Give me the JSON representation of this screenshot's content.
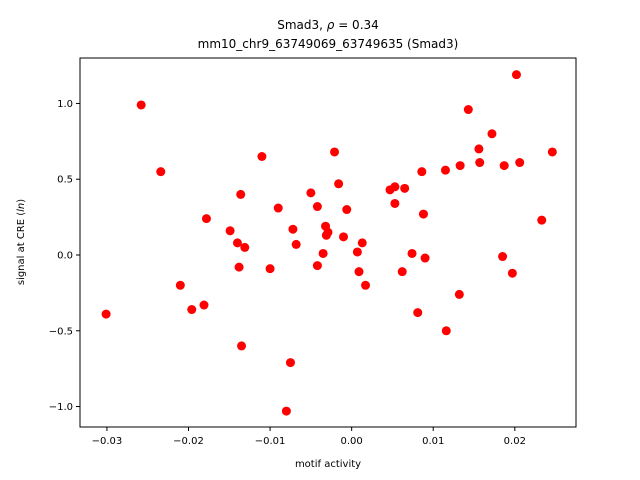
{
  "chart_data": {
    "type": "scatter",
    "title_line1_prefix": "Smad3, ",
    "title_rho_symbol": "ρ",
    "title_rho_value": " = 0.34",
    "title_line2": "mm10_chr9_63749069_63749635 (Smad3)",
    "xlabel": "motif activity",
    "ylabel_prefix": "signal at CRE (",
    "ylabel_italic": "ln",
    "ylabel_suffix": ")",
    "xlim": [
      -0.0333,
      0.0275
    ],
    "ylim": [
      -1.135,
      1.3
    ],
    "xticks": [
      -0.03,
      -0.02,
      -0.01,
      0.0,
      0.01,
      0.02
    ],
    "xtick_labels": [
      "−0.03",
      "−0.02",
      "−0.01",
      "0.00",
      "0.01",
      "0.02"
    ],
    "yticks": [
      -1.0,
      -0.5,
      0.0,
      0.5,
      1.0
    ],
    "ytick_labels": [
      "−1.0",
      "−0.5",
      "0.0",
      "0.5",
      "1.0"
    ],
    "grid": false,
    "marker_color": "#ff0000",
    "points": [
      {
        "x": -0.0301,
        "y": -0.39
      },
      {
        "x": -0.0258,
        "y": 0.99
      },
      {
        "x": -0.0234,
        "y": 0.55
      },
      {
        "x": -0.021,
        "y": -0.2
      },
      {
        "x": -0.0196,
        "y": -0.36
      },
      {
        "x": -0.0181,
        "y": -0.33
      },
      {
        "x": -0.0178,
        "y": 0.24
      },
      {
        "x": -0.0149,
        "y": 0.16
      },
      {
        "x": -0.014,
        "y": 0.08
      },
      {
        "x": -0.0138,
        "y": -0.08
      },
      {
        "x": -0.0136,
        "y": 0.4
      },
      {
        "x": -0.0135,
        "y": -0.6
      },
      {
        "x": -0.0131,
        "y": 0.05
      },
      {
        "x": -0.011,
        "y": 0.65
      },
      {
        "x": -0.01,
        "y": -0.09
      },
      {
        "x": -0.009,
        "y": 0.31
      },
      {
        "x": -0.008,
        "y": -1.03
      },
      {
        "x": -0.0075,
        "y": -0.71
      },
      {
        "x": -0.0072,
        "y": 0.17
      },
      {
        "x": -0.0068,
        "y": 0.07
      },
      {
        "x": -0.005,
        "y": 0.41
      },
      {
        "x": -0.0042,
        "y": 0.32
      },
      {
        "x": -0.0042,
        "y": -0.07
      },
      {
        "x": -0.0035,
        "y": 0.01
      },
      {
        "x": -0.0032,
        "y": 0.19
      },
      {
        "x": -0.0031,
        "y": 0.13
      },
      {
        "x": -0.0029,
        "y": 0.15
      },
      {
        "x": -0.0021,
        "y": 0.68
      },
      {
        "x": -0.0016,
        "y": 0.47
      },
      {
        "x": -0.001,
        "y": 0.12
      },
      {
        "x": -0.0006,
        "y": 0.3
      },
      {
        "x": 0.0007,
        "y": 0.02
      },
      {
        "x": 0.0009,
        "y": -0.11
      },
      {
        "x": 0.0013,
        "y": 0.08
      },
      {
        "x": 0.0017,
        "y": -0.2
      },
      {
        "x": 0.0047,
        "y": 0.43
      },
      {
        "x": 0.0053,
        "y": 0.45
      },
      {
        "x": 0.0053,
        "y": 0.34
      },
      {
        "x": 0.0062,
        "y": -0.11
      },
      {
        "x": 0.0065,
        "y": 0.44
      },
      {
        "x": 0.0074,
        "y": 0.01
      },
      {
        "x": 0.0081,
        "y": -0.38
      },
      {
        "x": 0.0086,
        "y": 0.55
      },
      {
        "x": 0.0088,
        "y": 0.27
      },
      {
        "x": 0.009,
        "y": -0.02
      },
      {
        "x": 0.0115,
        "y": 0.56
      },
      {
        "x": 0.0116,
        "y": -0.5
      },
      {
        "x": 0.0132,
        "y": -0.26
      },
      {
        "x": 0.0133,
        "y": 0.59
      },
      {
        "x": 0.0143,
        "y": 0.96
      },
      {
        "x": 0.0156,
        "y": 0.7
      },
      {
        "x": 0.0157,
        "y": 0.61
      },
      {
        "x": 0.0172,
        "y": 0.8
      },
      {
        "x": 0.0185,
        "y": -0.01
      },
      {
        "x": 0.0187,
        "y": 0.59
      },
      {
        "x": 0.0197,
        "y": -0.12
      },
      {
        "x": 0.0202,
        "y": 1.19
      },
      {
        "x": 0.0206,
        "y": 0.61
      },
      {
        "x": 0.0233,
        "y": 0.23
      },
      {
        "x": 0.0246,
        "y": 0.68
      }
    ]
  }
}
